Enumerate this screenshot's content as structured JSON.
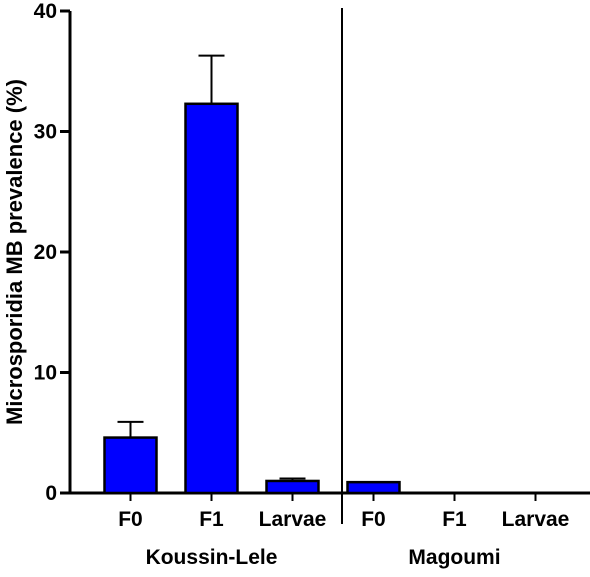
{
  "chart_data": {
    "type": "bar",
    "ylabel": "Microsporidia MB prevalence (%)",
    "ylim": [
      0,
      40
    ],
    "yticks": [
      0,
      10,
      20,
      30,
      40
    ],
    "bar_color": "#0000ff",
    "groups": [
      {
        "name": "Koussin-Lele",
        "categories": [
          "F0",
          "F1",
          "Larvae"
        ],
        "values": [
          4.6,
          32.3,
          1.0
        ],
        "errors": [
          1.3,
          4.0,
          0.2
        ]
      },
      {
        "name": "Magoumi",
        "categories": [
          "F0",
          "F1",
          "Larvae"
        ],
        "values": [
          0.9,
          0,
          0
        ],
        "errors": [
          0,
          0,
          0
        ]
      }
    ]
  }
}
